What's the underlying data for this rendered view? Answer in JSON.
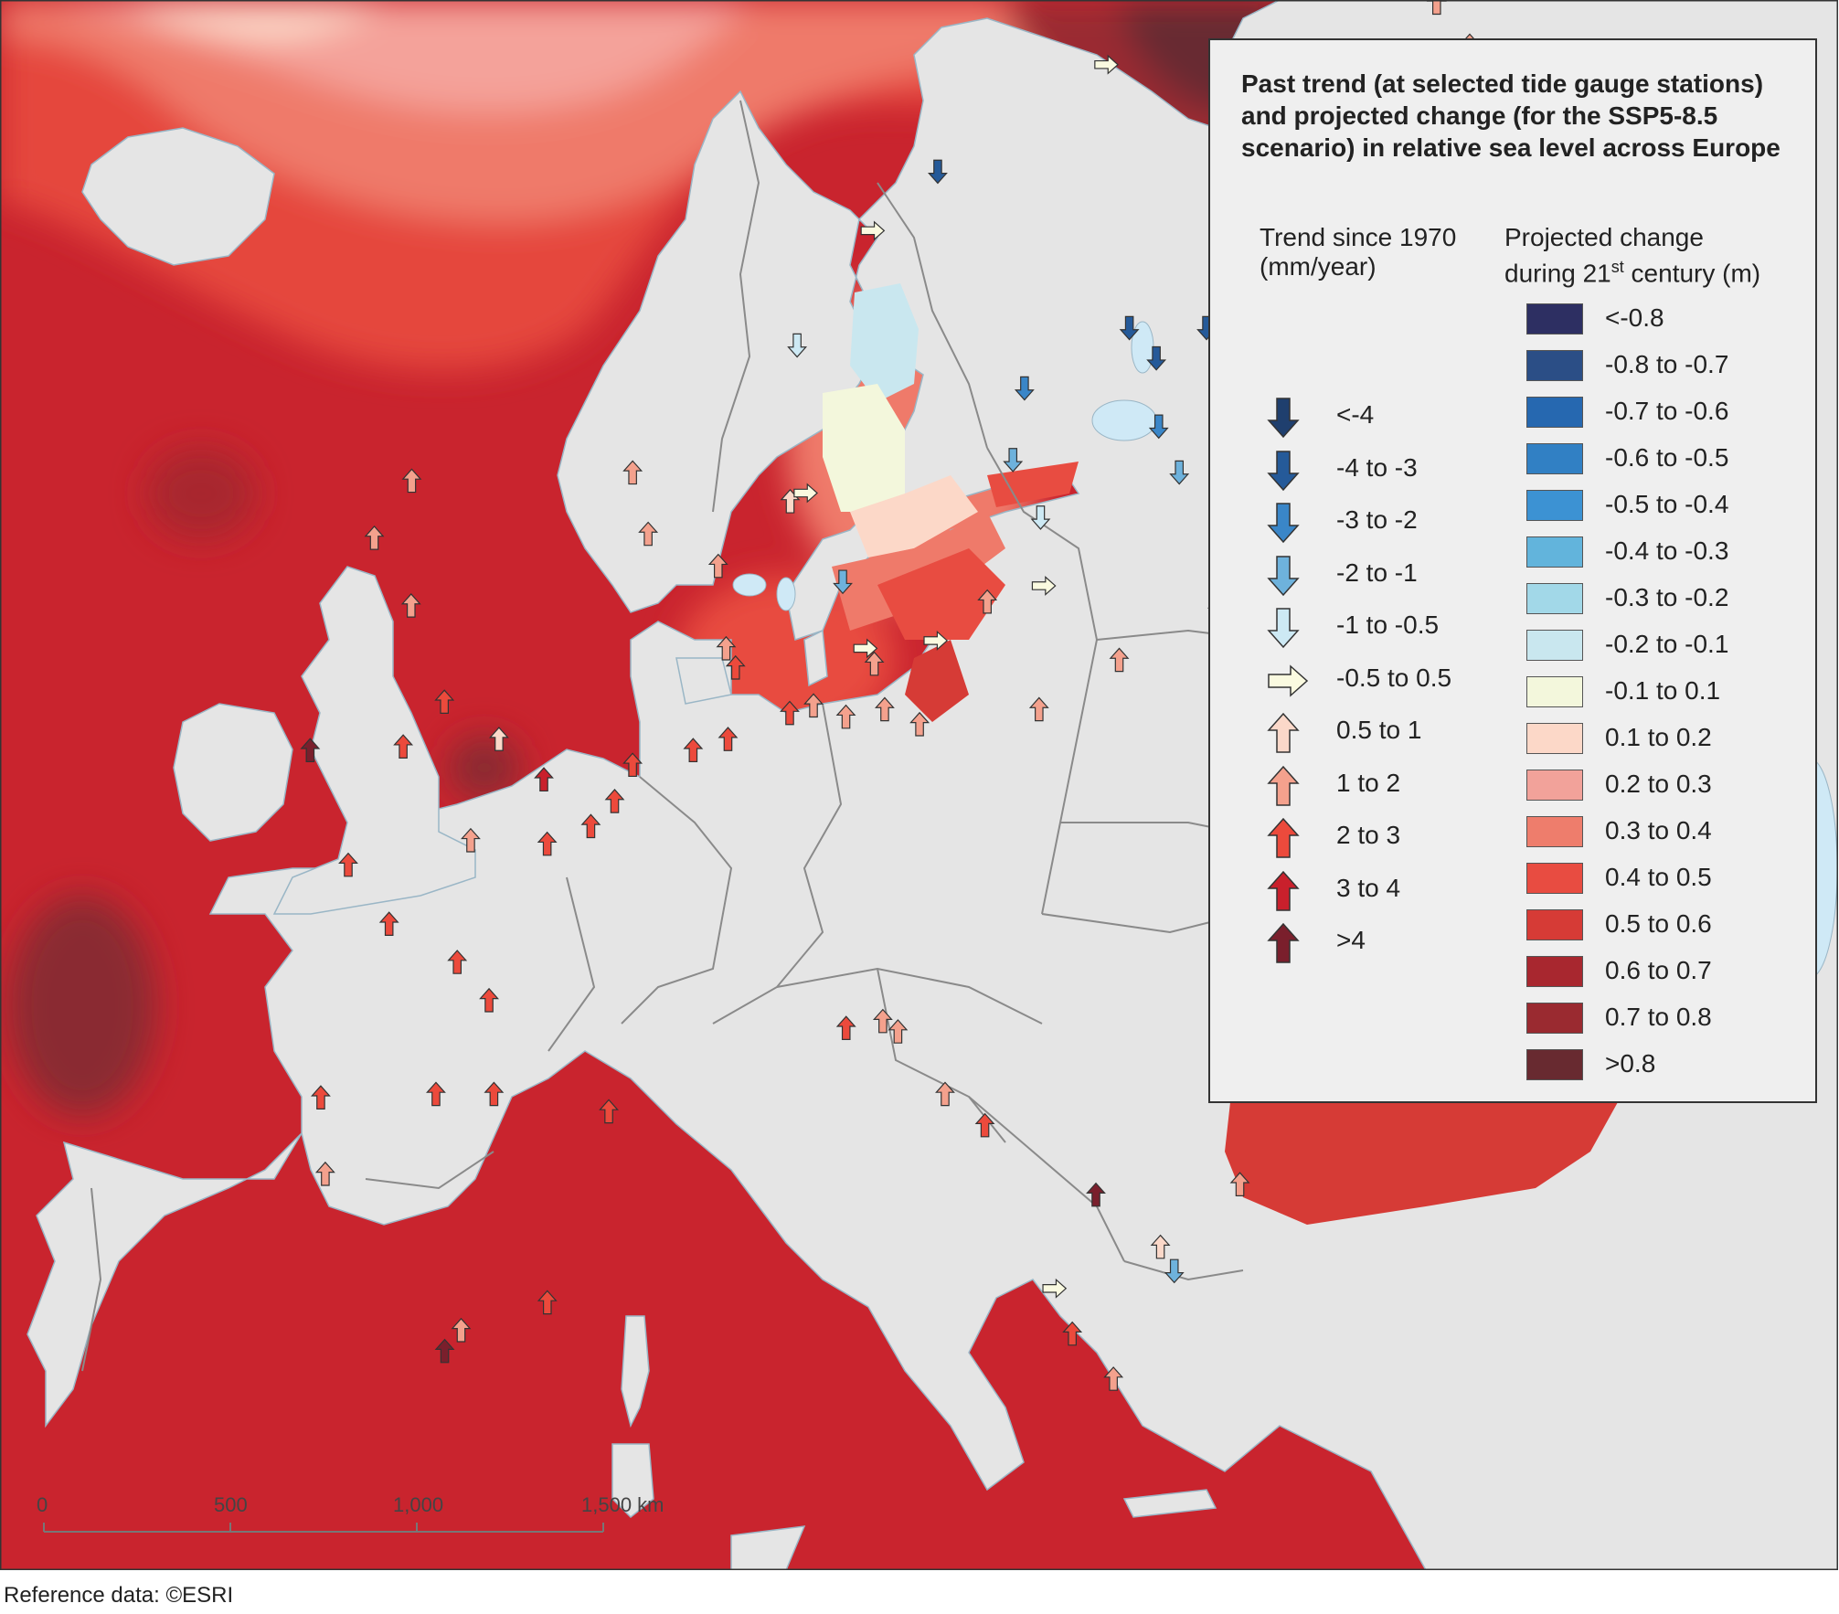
{
  "title": "Past trend (at selected tide gauge stations) and projected change (for the SSP5-8.5 scenario) in relative sea level across Europe",
  "trend_legend": {
    "heading": "Trend since 1970 (mm/year)",
    "items": [
      {
        "label": "<-4",
        "color": "#1f3f6e",
        "dir": "down"
      },
      {
        "label": "-4 to -3",
        "color": "#255a99",
        "dir": "down"
      },
      {
        "label": "-3 to -2",
        "color": "#3a86c8",
        "dir": "down"
      },
      {
        "label": "-2 to -1",
        "color": "#6eb2dc",
        "dir": "down"
      },
      {
        "label": "-1 to -0.5",
        "color": "#cde9f4",
        "dir": "down"
      },
      {
        "label": "-0.5 to 0.5",
        "color": "#fafae0",
        "dir": "right"
      },
      {
        "label": "0.5 to 1",
        "color": "#fbd8c9",
        "dir": "up"
      },
      {
        "label": "1 to 2",
        "color": "#f4a18d",
        "dir": "up"
      },
      {
        "label": "2 to 3",
        "color": "#ec4a3c",
        "dir": "up"
      },
      {
        "label": "3 to 4",
        "color": "#c9202c",
        "dir": "up"
      },
      {
        "label": ">4",
        "color": "#7a1f2c",
        "dir": "up"
      }
    ]
  },
  "projection_legend": {
    "heading_line1": "Projected change",
    "heading_line2_pre": "during 21",
    "heading_line2_sup": "st",
    "heading_line2_post": " century (m)",
    "items": [
      {
        "label": "<-0.8",
        "color": "#2d2f62"
      },
      {
        "label": "-0.8 to -0.7",
        "color": "#2b4e86"
      },
      {
        "label": "-0.7 to -0.6",
        "color": "#2668b0"
      },
      {
        "label": "-0.6 to -0.5",
        "color": "#3180c4"
      },
      {
        "label": "-0.5 to -0.4",
        "color": "#3c92d3"
      },
      {
        "label": "-0.4 to -0.3",
        "color": "#62b4dc"
      },
      {
        "label": "-0.3 to -0.2",
        "color": "#a2d8e8"
      },
      {
        "label": "-0.2 to -0.1",
        "color": "#c9e7ef"
      },
      {
        "label": "-0.1 to 0.1",
        "color": "#f3f7dc"
      },
      {
        "label": "0.1 to 0.2",
        "color": "#fcd8c8"
      },
      {
        "label": "0.2 to 0.3",
        "color": "#f2a29a"
      },
      {
        "label": "0.3 to 0.4",
        "color": "#ee7d6c"
      },
      {
        "label": "0.4 to 0.5",
        "color": "#e84c41"
      },
      {
        "label": "0.5 to 0.6",
        "color": "#d63b36"
      },
      {
        "label": "0.6 to 0.7",
        "color": "#a8272f"
      },
      {
        "label": "0.7 to 0.8",
        "color": "#9a2a30"
      },
      {
        "label": ">0.8",
        "color": "#682a30"
      }
    ]
  },
  "scale_bar": {
    "labels": [
      "0",
      "500",
      "1,000",
      "1,500 km"
    ]
  },
  "reference": "Reference data: ©ESRI",
  "colors": {
    "land": "#e5e5e5",
    "border": "#8a8a8a",
    "lake": "#cfe9f6"
  },
  "stations": [
    {
      "lon": -21.9,
      "lat": 64.1,
      "cls": 8
    },
    {
      "lon": 5.3,
      "lat": 60.4,
      "cls": 7
    },
    {
      "lon": 5.7,
      "lat": 58.9,
      "cls": 7
    },
    {
      "lon": 7.9,
      "lat": 58.1,
      "cls": 7
    },
    {
      "lon": 10.2,
      "lat": 59.7,
      "cls": 6
    },
    {
      "lon": 10.6,
      "lat": 59.9,
      "cls": 5
    },
    {
      "lon": 11.9,
      "lat": 57.7,
      "cls": 3
    },
    {
      "lon": 12.6,
      "lat": 56.0,
      "cls": 5
    },
    {
      "lon": 8.1,
      "lat": 56.0,
      "cls": 7
    },
    {
      "lon": 8.4,
      "lat": 55.5,
      "cls": 8
    },
    {
      "lon": 10.2,
      "lat": 54.3,
      "cls": 8
    },
    {
      "lon": 11.0,
      "lat": 54.5,
      "cls": 7
    },
    {
      "lon": 12.1,
      "lat": 54.2,
      "cls": 7
    },
    {
      "lon": 13.4,
      "lat": 54.4,
      "cls": 7
    },
    {
      "lon": 14.6,
      "lat": 54.0,
      "cls": 7
    },
    {
      "lon": 18.6,
      "lat": 54.4,
      "cls": 7
    },
    {
      "lon": 21.1,
      "lat": 55.7,
      "cls": 7
    },
    {
      "lon": 24.1,
      "lat": 57.0,
      "cls": 10
    },
    {
      "lon": 24.9,
      "lat": 60.2,
      "cls": 3
    },
    {
      "lon": 22.3,
      "lat": 60.4,
      "cls": 3
    },
    {
      "lon": 21.5,
      "lat": 61.5,
      "cls": 2
    },
    {
      "lon": 21.2,
      "lat": 63.1,
      "cls": 1
    },
    {
      "lon": 22.6,
      "lat": 63.8,
      "cls": 1
    },
    {
      "lon": 24.5,
      "lat": 65.0,
      "cls": 0
    },
    {
      "lon": 25.4,
      "lat": 65.7,
      "cls": 0
    },
    {
      "lon": 20.3,
      "lat": 63.8,
      "cls": 1
    },
    {
      "lon": 17.3,
      "lat": 62.4,
      "cls": 2
    },
    {
      "lon": 17.1,
      "lat": 60.7,
      "cls": 3
    },
    {
      "lon": 18.1,
      "lat": 59.3,
      "cls": 4
    },
    {
      "lon": 16.6,
      "lat": 57.2,
      "cls": 7
    },
    {
      "lon": 18.3,
      "lat": 57.6,
      "cls": 5
    },
    {
      "lon": 14.9,
      "lat": 56.2,
      "cls": 5
    },
    {
      "lon": 13.0,
      "lat": 55.6,
      "cls": 7
    },
    {
      "lon": 15.6,
      "lat": 78.2,
      "cls": 6
    },
    {
      "lon": 18.9,
      "lat": 69.6,
      "cls": 5
    },
    {
      "lon": 14.4,
      "lat": 67.3,
      "cls": 1
    },
    {
      "lon": 12.5,
      "lat": 66.0,
      "cls": 5
    },
    {
      "lon": 10.4,
      "lat": 63.4,
      "cls": 4
    },
    {
      "lon": 27.9,
      "lat": 70.9,
      "cls": 7
    },
    {
      "lon": 29.0,
      "lat": 70.0,
      "cls": 7
    },
    {
      "lon": -1.6,
      "lat": 60.2,
      "cls": 7
    },
    {
      "lon": -3.0,
      "lat": 58.8,
      "cls": 7
    },
    {
      "lon": -2.1,
      "lat": 57.1,
      "cls": 7
    },
    {
      "lon": -1.4,
      "lat": 54.6,
      "cls": 8
    },
    {
      "lon": 0.3,
      "lat": 53.6,
      "cls": 6
    },
    {
      "lon": 1.7,
      "lat": 52.5,
      "cls": 9
    },
    {
      "lon": -3.0,
      "lat": 53.4,
      "cls": 8
    },
    {
      "lon": -6.2,
      "lat": 53.3,
      "cls": 10
    },
    {
      "lon": -5.6,
      "lat": 50.1,
      "cls": 8
    },
    {
      "lon": -1.1,
      "lat": 50.8,
      "cls": 7
    },
    {
      "lon": 1.6,
      "lat": 50.7,
      "cls": 8
    },
    {
      "lon": 3.2,
      "lat": 51.2,
      "cls": 8
    },
    {
      "lon": 4.1,
      "lat": 51.9,
      "cls": 8
    },
    {
      "lon": 4.8,
      "lat": 52.9,
      "cls": 8
    },
    {
      "lon": 6.9,
      "lat": 53.3,
      "cls": 8
    },
    {
      "lon": 8.1,
      "lat": 53.6,
      "cls": 8
    },
    {
      "lon": -4.5,
      "lat": 48.4,
      "cls": 8
    },
    {
      "lon": -2.2,
      "lat": 47.3,
      "cls": 8
    },
    {
      "lon": -1.2,
      "lat": 46.2,
      "cls": 8
    },
    {
      "lon": -8.4,
      "lat": 43.4,
      "cls": 8
    },
    {
      "lon": -8.9,
      "lat": 41.2,
      "cls": 7
    },
    {
      "lon": -3.8,
      "lat": 43.5,
      "cls": 8
    },
    {
      "lon": -1.5,
      "lat": 43.5,
      "cls": 8
    },
    {
      "lon": 3.0,
      "lat": 43.0,
      "cls": 8
    },
    {
      "lon": -5.3,
      "lat": 36.1,
      "cls": 10
    },
    {
      "lon": -4.4,
      "lat": 36.7,
      "cls": 7
    },
    {
      "lon": -0.4,
      "lat": 37.5,
      "cls": 8
    },
    {
      "lon": 12.4,
      "lat": 45.4,
      "cls": 8
    },
    {
      "lon": 13.8,
      "lat": 45.6,
      "cls": 7
    },
    {
      "lon": 14.4,
      "lat": 45.3,
      "cls": 7
    },
    {
      "lon": 16.4,
      "lat": 43.5,
      "cls": 7
    },
    {
      "lon": 18.1,
      "lat": 42.6,
      "cls": 8
    },
    {
      "lon": 21.7,
      "lat": 37.9,
      "cls": 5
    },
    {
      "lon": 23.0,
      "lat": 40.6,
      "cls": 10
    },
    {
      "lon": 26.1,
      "lat": 39.1,
      "cls": 6
    },
    {
      "lon": 26.9,
      "lat": 38.4,
      "cls": 3
    },
    {
      "lon": 22.9,
      "lat": 36.6,
      "cls": 8
    },
    {
      "lon": 25.1,
      "lat": 35.3,
      "cls": 7
    },
    {
      "lon": 28.9,
      "lat": 40.9,
      "cls": 7
    }
  ]
}
